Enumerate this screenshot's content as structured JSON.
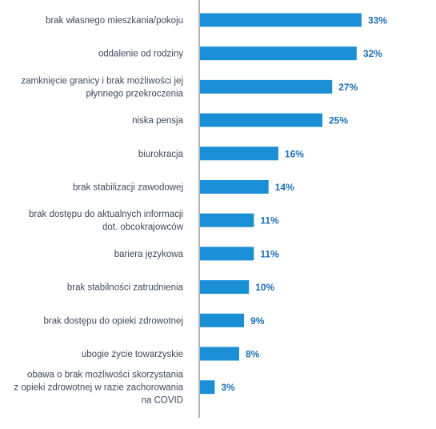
{
  "chart_data": {
    "type": "bar",
    "orientation": "horizontal",
    "categories": [
      [
        "brak własnego mieszkania/pokoju"
      ],
      [
        "oddalenie od rodziny"
      ],
      [
        "zamknięcie granicy i brak możliwości jej",
        "płynnego przekroczenia"
      ],
      [
        "niska pensja"
      ],
      [
        "biurokracja"
      ],
      [
        "brak stabilizacji zawodowej"
      ],
      [
        "brak dostępu do aktualnych informacji",
        "dot. obcokrajowców"
      ],
      [
        "bariera językowa"
      ],
      [
        "brak stabilności zatrudnienia"
      ],
      [
        "brak dostępu do opieki zdrowotnej"
      ],
      [
        "ubogie życie towarzyskie"
      ],
      [
        "obawa o brak możliwości skorzystania",
        "z opieki zdrowotnej w razie zachorowania",
        "na COVID"
      ]
    ],
    "values": [
      33,
      32,
      27,
      25,
      16,
      14,
      11,
      11,
      10,
      9,
      8,
      3
    ],
    "value_labels": [
      "33%",
      "32%",
      "27%",
      "25%",
      "16%",
      "14%",
      "11%",
      "11%",
      "10%",
      "9%",
      "8%",
      "3%"
    ],
    "unit": "%",
    "bar_color": "#1a8fd6",
    "value_label_color": "#1f6fb4",
    "axis_color": "#6b6b6b",
    "grid": false,
    "legend": "none"
  }
}
